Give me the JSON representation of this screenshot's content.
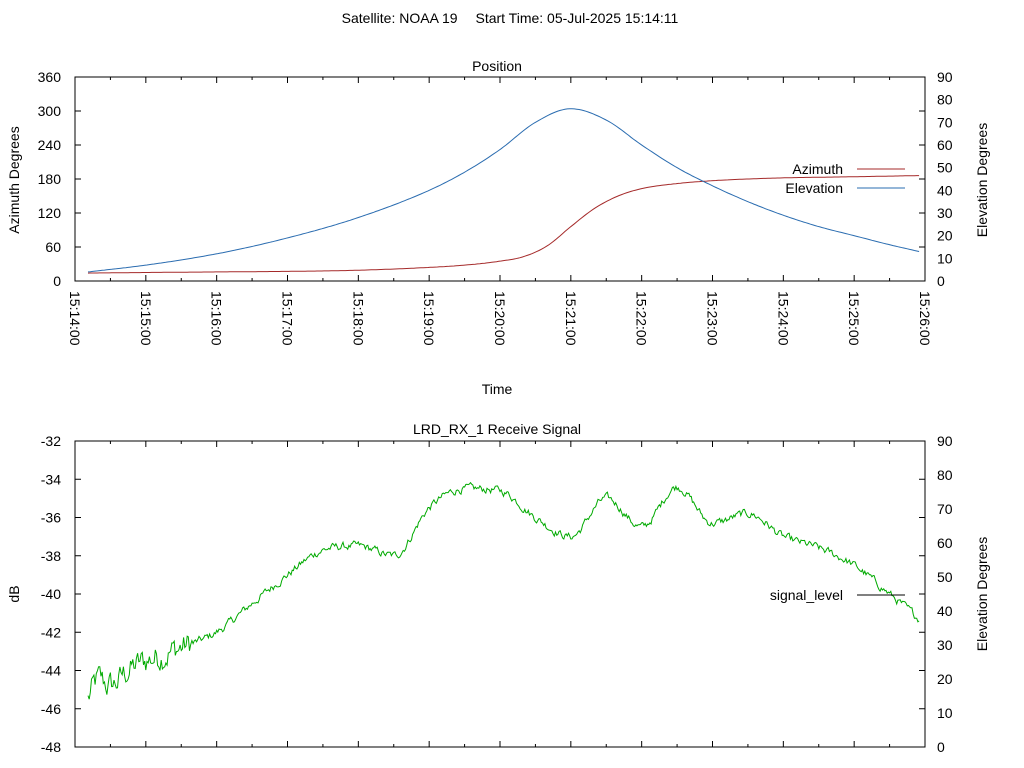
{
  "header": {
    "satellite_label": "Satellite: NOAA 19",
    "start_time_label": "Start Time: 05-Jul-2025 15:14:11"
  },
  "chart_data": [
    {
      "type": "line",
      "title": "Position",
      "xlabel": "Time",
      "ylabel": "Azimuth Degrees",
      "y2label": "Elevation Degrees",
      "xlim": [
        "15:14:00",
        "15:26:00"
      ],
      "ylim": [
        0,
        360
      ],
      "y2lim": [
        0,
        90
      ],
      "x_ticks": [
        "15:14:00",
        "15:15:00",
        "15:16:00",
        "15:17:00",
        "15:18:00",
        "15:19:00",
        "15:20:00",
        "15:21:00",
        "15:22:00",
        "15:23:00",
        "15:24:00",
        "15:25:00",
        "15:26:00"
      ],
      "y_ticks": [
        "0",
        "60",
        "120",
        "180",
        "240",
        "300",
        "360"
      ],
      "y2_ticks": [
        "0",
        "10",
        "20",
        "30",
        "40",
        "50",
        "60",
        "70",
        "80",
        "90"
      ],
      "legend_position": "right",
      "grid": false,
      "series": [
        {
          "name": "Azimuth",
          "axis": "y",
          "color": "#a52a2a",
          "x": [
            "15:14:11",
            "15:15:00",
            "15:16:00",
            "15:17:00",
            "15:18:00",
            "15:19:00",
            "15:19:30",
            "15:20:00",
            "15:20:20",
            "15:20:40",
            "15:21:00",
            "15:21:20",
            "15:21:40",
            "15:22:00",
            "15:22:30",
            "15:23:00",
            "15:23:30",
            "15:24:00",
            "15:25:00",
            "15:25:55"
          ],
          "values": [
            14,
            15,
            16,
            17,
            19,
            24,
            28,
            35,
            43,
            62,
            96,
            128,
            150,
            163,
            172,
            177,
            180,
            182,
            184,
            186
          ]
        },
        {
          "name": "Elevation",
          "axis": "y2",
          "color": "#2a6cb0",
          "x": [
            "15:14:11",
            "15:15:00",
            "15:16:00",
            "15:17:00",
            "15:18:00",
            "15:19:00",
            "15:19:30",
            "15:20:00",
            "15:20:30",
            "15:21:00",
            "15:21:30",
            "15:22:00",
            "15:22:30",
            "15:23:00",
            "15:23:30",
            "15:24:00",
            "15:24:30",
            "15:25:00",
            "15:25:30",
            "15:25:55"
          ],
          "values": [
            4,
            7,
            12,
            19,
            28,
            40,
            48,
            58,
            70,
            76,
            71,
            60,
            50,
            42,
            35,
            29,
            24,
            20,
            16,
            13
          ]
        }
      ]
    },
    {
      "type": "line",
      "title": "LRD_RX_1 Receive Signal",
      "xlabel": "",
      "ylabel": "dB",
      "y2label": "Elevation Degrees",
      "xlim": [
        "15:14:00",
        "15:26:00"
      ],
      "ylim": [
        -48,
        -32
      ],
      "y2lim": [
        0,
        90
      ],
      "y_ticks": [
        "-48",
        "-46",
        "-44",
        "-42",
        "-40",
        "-38",
        "-36",
        "-34",
        "-32"
      ],
      "y2_ticks": [
        "0",
        "10",
        "20",
        "30",
        "40",
        "50",
        "60",
        "70",
        "80",
        "90"
      ],
      "legend_position": "right",
      "grid": false,
      "series": [
        {
          "name": "signal_level",
          "axis": "y",
          "color": "#00aa00",
          "x": [
            "15:14:11",
            "15:14:20",
            "15:14:30",
            "15:14:45",
            "15:15:00",
            "15:15:30",
            "15:16:00",
            "15:16:30",
            "15:17:00",
            "15:17:30",
            "15:18:00",
            "15:18:30",
            "15:19:00",
            "15:19:30",
            "15:20:00",
            "15:20:30",
            "15:21:00",
            "15:21:30",
            "15:22:00",
            "15:22:30",
            "15:23:00",
            "15:23:30",
            "15:24:00",
            "15:24:30",
            "15:25:00",
            "15:25:30",
            "15:25:55"
          ],
          "values": [
            -45.5,
            -44.5,
            -44.8,
            -44.0,
            -43.5,
            -42.8,
            -42.0,
            -40.5,
            -39.0,
            -37.7,
            -37.5,
            -38.0,
            -35.5,
            -34.5,
            -34.6,
            -36.0,
            -37.0,
            -35.0,
            -36.5,
            -34.4,
            -36.3,
            -35.8,
            -37.0,
            -37.6,
            -38.5,
            -40.0,
            -41.3
          ]
        }
      ]
    }
  ]
}
